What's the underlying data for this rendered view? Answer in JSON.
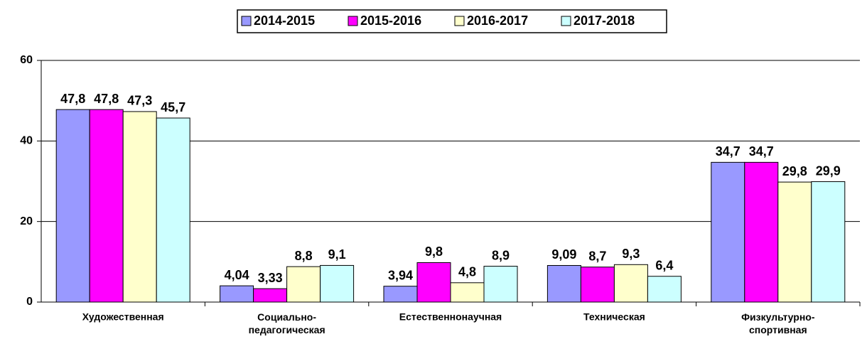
{
  "chart_data": {
    "type": "bar",
    "categories": [
      "Художественная",
      "Социально-\nпедагогическая",
      "Естественнонаучная",
      "Техническая",
      "Физкультурно-\nспортивная"
    ],
    "series": [
      {
        "name": "2014-2015",
        "color": "#9999ff",
        "values": [
          47.8,
          4.04,
          3.94,
          9.09,
          34.7
        ],
        "value_labels": [
          "47,8",
          "4,04",
          "3,94",
          "9,09",
          "34,7"
        ]
      },
      {
        "name": "2015-2016",
        "color": "#ff00ff",
        "values": [
          47.8,
          3.33,
          9.8,
          8.7,
          34.7
        ],
        "value_labels": [
          "47,8",
          "3,33",
          "9,8",
          "8,7",
          "34,7"
        ]
      },
      {
        "name": "2016-2017",
        "color": "#ffffcc",
        "values": [
          47.3,
          8.8,
          4.8,
          9.3,
          29.8
        ],
        "value_labels": [
          "47,3",
          "8,8",
          "4,8",
          "9,3",
          "29,8"
        ]
      },
      {
        "name": "2017-2018",
        "color": "#ccffff",
        "values": [
          45.7,
          9.1,
          8.9,
          6.4,
          29.9
        ],
        "value_labels": [
          "45,7",
          "9,1",
          "8,9",
          "6,4",
          "29,9"
        ]
      }
    ],
    "ylim": [
      0,
      60
    ],
    "yticks": [
      0,
      20,
      40,
      60
    ],
    "grid": true,
    "legend": "top"
  }
}
